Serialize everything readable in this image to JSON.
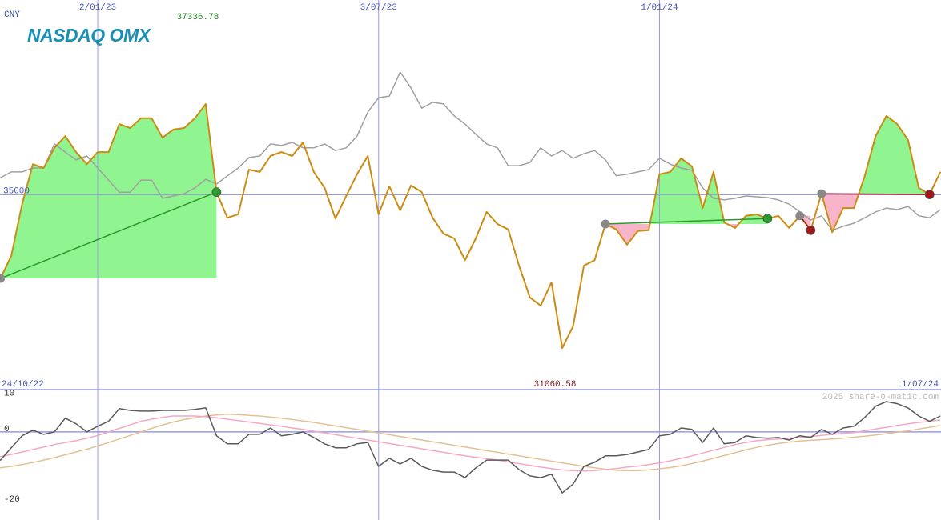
{
  "currency": "CNY",
  "logo": "NASDAQ OMX",
  "watermark": "2025 share-o-matic.com",
  "chart_data": [
    {
      "type": "line",
      "categories": [
        "24/10/22",
        null,
        null,
        null,
        null,
        null,
        null,
        null,
        null,
        null,
        "2/01/23",
        null,
        null,
        null,
        null,
        null,
        null,
        null,
        null,
        null,
        null,
        null,
        null,
        null,
        null,
        null,
        null,
        null,
        null,
        null,
        null,
        null,
        null,
        null,
        null,
        null,
        "3/07/23",
        null,
        null,
        null,
        null,
        null,
        null,
        null,
        null,
        null,
        null,
        null,
        null,
        null,
        null,
        null,
        null,
        null,
        null,
        null,
        null,
        null,
        null,
        null,
        null,
        null,
        "1/01/24",
        null,
        null,
        null,
        null,
        null,
        null,
        null,
        null,
        null,
        null,
        null,
        null,
        null,
        null,
        null,
        null,
        null,
        null,
        null,
        null,
        null,
        null,
        null,
        null,
        null,
        "1/07/24"
      ],
      "series": [
        {
          "color": "#a0a0a0",
          "values": [
            35380,
            35440,
            35590,
            35590,
            35690,
            35690,
            36310,
            36100,
            35900,
            36000,
            35690,
            35380,
            35070,
            35070,
            35380,
            35380,
            34910,
            34970,
            35030,
            35180,
            35400,
            35280,
            35490,
            35690,
            35960,
            36000,
            36310,
            36270,
            36350,
            36210,
            36210,
            36310,
            36140,
            36210,
            36510,
            37130,
            37500,
            37540,
            38160,
            37750,
            37230,
            37380,
            37340,
            37030,
            36820,
            36560,
            36310,
            36210,
            35750,
            35750,
            35830,
            36210,
            36000,
            36140,
            35940,
            36060,
            36140,
            35900,
            35490,
            35530,
            35590,
            35650,
            35940,
            35790,
            35690,
            35630,
            35180,
            34910,
            34870,
            34910,
            34970,
            34950,
            34930,
            34870,
            34760,
            34560,
            34350,
            34460,
            34090,
            34190,
            34270,
            34410,
            34560,
            34660,
            34620,
            34700,
            34460,
            34410,
            34620
          ]
        },
        {
          "color": "#cc8b12",
          "values": [
            32600,
            32850,
            33430,
            34760,
            35790,
            35690,
            36210,
            36510,
            36100,
            35790,
            36100,
            36100,
            36820,
            36720,
            36970,
            36970,
            36470,
            36680,
            36720,
            36970,
            37336.78,
            35070,
            34410,
            34500,
            35650,
            35590,
            36000,
            36100,
            36000,
            36350,
            35590,
            35180,
            34390,
            34970,
            35530,
            36000,
            34500,
            35220,
            34600,
            35240,
            35070,
            34410,
            34000,
            33880,
            33320,
            33880,
            34560,
            34250,
            34110,
            33180,
            32360,
            32150,
            32750,
            31060.58,
            31620,
            33180,
            33320,
            34250,
            34110,
            33720,
            34070,
            34090,
            35530,
            35590,
            35940,
            35730,
            34660,
            35590,
            34290,
            34150,
            34460,
            34500,
            34390,
            34460,
            34150,
            34460,
            34090,
            35030,
            34040,
            34660,
            34660,
            35490,
            36510,
            37030,
            36820,
            36410,
            35180,
            35010,
            35590
          ]
        }
      ],
      "signals": [
        {
          "entry": 1,
          "exit": 21
        },
        {
          "entry": 57,
          "exit": 72
        },
        {
          "entry": 75,
          "exit": 76
        },
        {
          "entry": 77,
          "exit": 87
        }
      ],
      "gain_color": "#90f590",
      "loss_color": "#f8b4c8",
      "gain_line": "#2a9a2a",
      "loss_line": "#a01818",
      "entry_color": "#888888",
      "ylim": [
        30000,
        38500
      ],
      "yticks": [
        35000
      ],
      "grid": true,
      "grid_color": "#9a9aee"
    },
    {
      "type": "line",
      "series": [
        {
          "color": "#e2c294",
          "values": [
            -10.5,
            -10.2,
            -9.8,
            -9.3,
            -8.7,
            -8,
            -7.3,
            -6.5,
            -5.7,
            -4.9,
            -4,
            -3,
            -2,
            -1,
            0,
            1,
            2,
            2.8,
            3.5,
            4,
            4.5,
            4.8,
            5,
            4.9,
            4.7,
            4.5,
            4.2,
            3.9,
            3.5,
            3.1,
            2.7,
            2.2,
            1.7,
            1.2,
            0.7,
            0.2,
            -0.3,
            -0.8,
            -1.3,
            -1.8,
            -2.3,
            -2.8,
            -3.3,
            -3.8,
            -4.3,
            -4.8,
            -5.3,
            -5.8,
            -6.3,
            -6.8,
            -7.3,
            -7.8,
            -8.3,
            -8.8,
            -9.3,
            -9.8,
            -10.2,
            -10.6,
            -10.9,
            -11,
            -11,
            -10.8,
            -10.5,
            -10.1,
            -9.6,
            -9,
            -8.3,
            -7.5,
            -6.7,
            -5.9,
            -5.1,
            -4.4,
            -3.8,
            -3.3,
            -2.9,
            -2.6,
            -2.4,
            -2.2,
            -2,
            -1.8,
            -1.5,
            -1.2,
            -0.9,
            -0.5,
            -0.1,
            0.3,
            0.8,
            1.3,
            1.8
          ]
        },
        {
          "color": "#f4a8c4",
          "values": [
            -7.5,
            -7,
            -6.4,
            -5.7,
            -5,
            -4.3,
            -3.6,
            -3,
            -2.5,
            -1.8,
            -1,
            0,
            1,
            2,
            3,
            3.6,
            4.1,
            4.5,
            4.5,
            4.5,
            4.3,
            4,
            3.6,
            3.2,
            2.8,
            2.4,
            2,
            1.6,
            1.1,
            0.7,
            0.2,
            -0.3,
            -0.8,
            -1.3,
            -1.8,
            -2.3,
            -2.8,
            -3.3,
            -3.8,
            -4.3,
            -4.8,
            -5.3,
            -5.8,
            -6.3,
            -6.8,
            -7.2,
            -7.6,
            -8,
            -8.5,
            -9,
            -9.5,
            -10,
            -10.4,
            -10.8,
            -11,
            -11.1,
            -11,
            -10.7,
            -10.4,
            -10,
            -9.7,
            -9.3,
            -8.8,
            -8.2,
            -7.5,
            -6.8,
            -6,
            -5.2,
            -4.4,
            -3.6,
            -3,
            -2.5,
            -2.2,
            -2,
            -1.8,
            -1.6,
            -1.3,
            -1,
            -0.7,
            -0.4,
            -0.2,
            0.3,
            0.8,
            1.3,
            1.8,
            2.3,
            2.7,
            3,
            3.4
          ]
        },
        {
          "color": "#5a5a5a",
          "values": [
            -9.1,
            -8,
            -4.5,
            -1.1,
            0.5,
            -0.7,
            0,
            3.9,
            2.3,
            0,
            1.6,
            3,
            6.6,
            6.1,
            5.9,
            5.9,
            6.1,
            6.1,
            6.1,
            6.4,
            6.8,
            -1.1,
            -3.4,
            -3.4,
            -0.7,
            -0.7,
            1.1,
            -1.1,
            -0.7,
            0,
            -1.6,
            -3.4,
            -4.5,
            -4.5,
            -3.4,
            -3,
            -9.8,
            -7.5,
            -9.1,
            -7.5,
            -9.8,
            -10.9,
            -11.4,
            -11.4,
            -13,
            -10.2,
            -8,
            -8,
            -8,
            -10.7,
            -12.5,
            -13,
            -12,
            -17.3,
            -14.8,
            -9.8,
            -8.6,
            -6.8,
            -6.8,
            -6.4,
            -5.7,
            -5,
            -1.1,
            -0.7,
            1.1,
            0.7,
            -3,
            1.1,
            -3.4,
            -3,
            -1.1,
            -1.6,
            -1.8,
            -1.6,
            -2.3,
            -1.1,
            -1.6,
            0.7,
            -0.7,
            1.1,
            1.6,
            4.1,
            7.3,
            8.6,
            8,
            6.8,
            4.5,
            3,
            4.5
          ]
        }
      ],
      "ylim": [
        -25,
        12
      ],
      "yticks": [
        10,
        0,
        -20
      ],
      "grid_color": "#9a9aee"
    }
  ]
}
